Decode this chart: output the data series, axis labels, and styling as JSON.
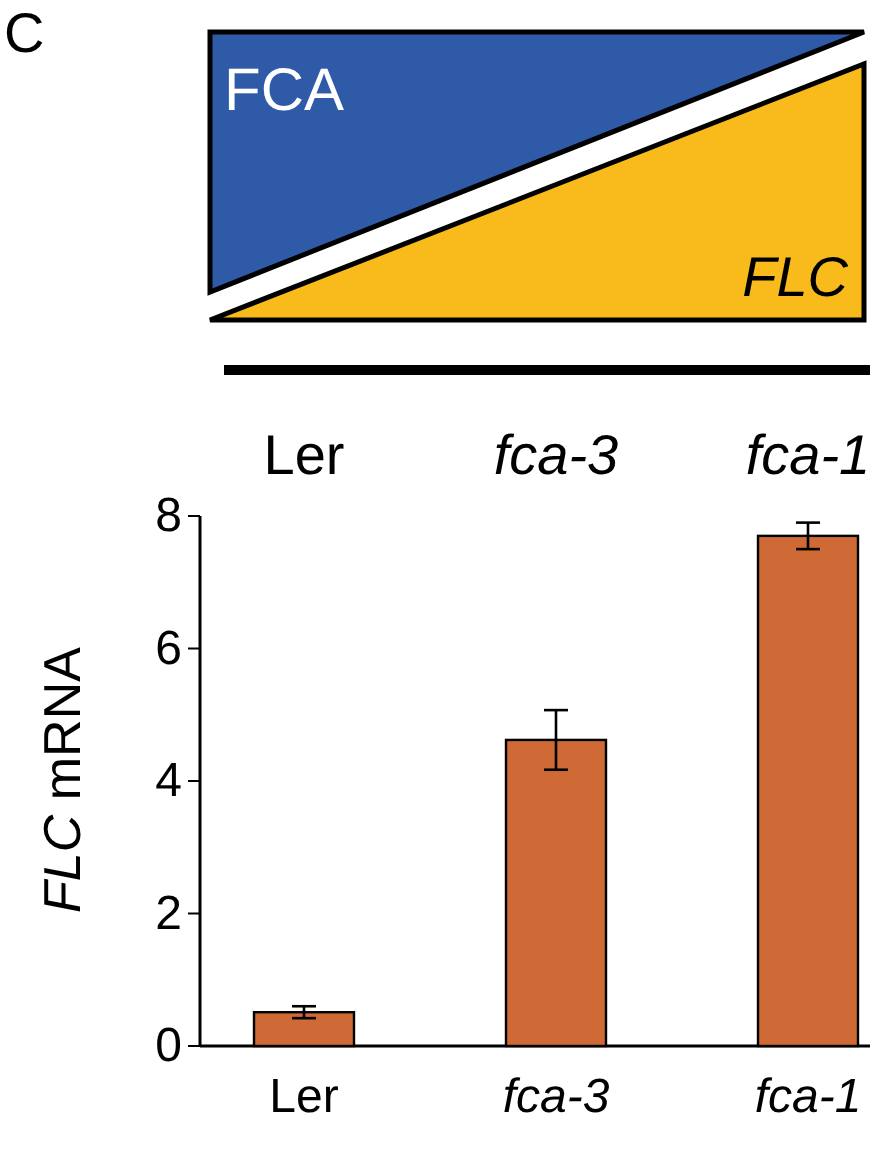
{
  "chart_data": {
    "type": "bar",
    "categories": [
      "Ler",
      "fca-3",
      "fca-1"
    ],
    "values": [
      0.51,
      4.62,
      7.7
    ],
    "errors": [
      0.09,
      0.45,
      0.2
    ],
    "color": "#cf6935",
    "ylabel": "FLC mRNA",
    "ylim": [
      0,
      8
    ],
    "yticks": [
      0,
      2,
      4,
      6,
      8
    ],
    "grid": false,
    "annotations": [
      "C",
      "FCA",
      "FLC",
      "Ler",
      "fca-3",
      "fca-1"
    ]
  }
}
